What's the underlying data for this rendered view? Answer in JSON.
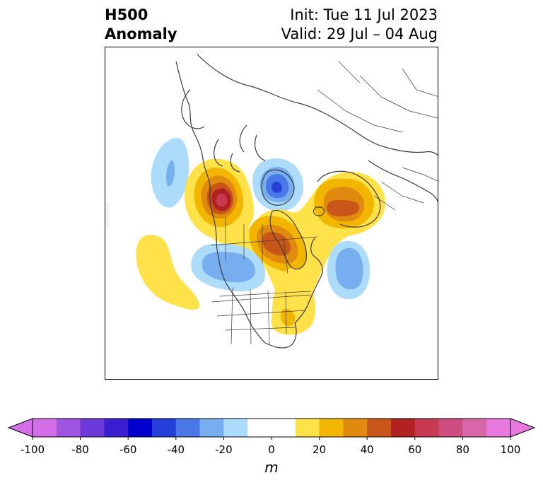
{
  "title": {
    "left_line1": "H500",
    "left_line2": "Anomaly",
    "right_line1": "Init: Tue 11 Jul 2023",
    "right_line2": "Valid: 29 Jul – 04 Aug"
  },
  "colorbar": {
    "unit": "m",
    "ticks": [
      "-100",
      "-80",
      "-60",
      "-40",
      "-20",
      "0",
      "20",
      "40",
      "60",
      "80",
      "100"
    ],
    "levels": [
      -100,
      -90,
      -80,
      -70,
      -60,
      -50,
      -40,
      -30,
      -20,
      -10,
      10,
      20,
      30,
      40,
      50,
      60,
      70,
      80,
      90,
      100
    ],
    "colors": [
      "#d46ee8",
      "#9f55e0",
      "#6b3ad8",
      "#3a1ed0",
      "#0000cc",
      "#2440d8",
      "#4a78e6",
      "#76aef0",
      "#acdcfa",
      "#ffffff",
      "#ffe14a",
      "#f2b600",
      "#e08a10",
      "#c85618",
      "#b22222",
      "#c63a52",
      "#cf4e80",
      "#d966a8",
      "#e878dd"
    ],
    "extend_low_color": "#d46ee8",
    "extend_high_color": "#e878dd"
  },
  "anomaly_centers": [
    {
      "name": "pacific-nw-low",
      "sign": "negative",
      "peak": -20
    },
    {
      "name": "western-canada-high",
      "sign": "positive",
      "peak": 70
    },
    {
      "name": "hudson-bay-low",
      "sign": "negative",
      "peak": -50
    },
    {
      "name": "scandinavia-high",
      "sign": "positive",
      "peak": 50
    },
    {
      "name": "greenland-high",
      "sign": "positive",
      "peak": 50
    },
    {
      "name": "north-atlantic-low",
      "sign": "negative",
      "peak": -30
    },
    {
      "name": "northeast-pacific-low",
      "sign": "negative",
      "peak": -30
    },
    {
      "name": "subtropical-pacific-high",
      "sign": "positive",
      "peak": 10
    },
    {
      "name": "eastern-us-high",
      "sign": "positive",
      "peak": 20
    }
  ]
}
